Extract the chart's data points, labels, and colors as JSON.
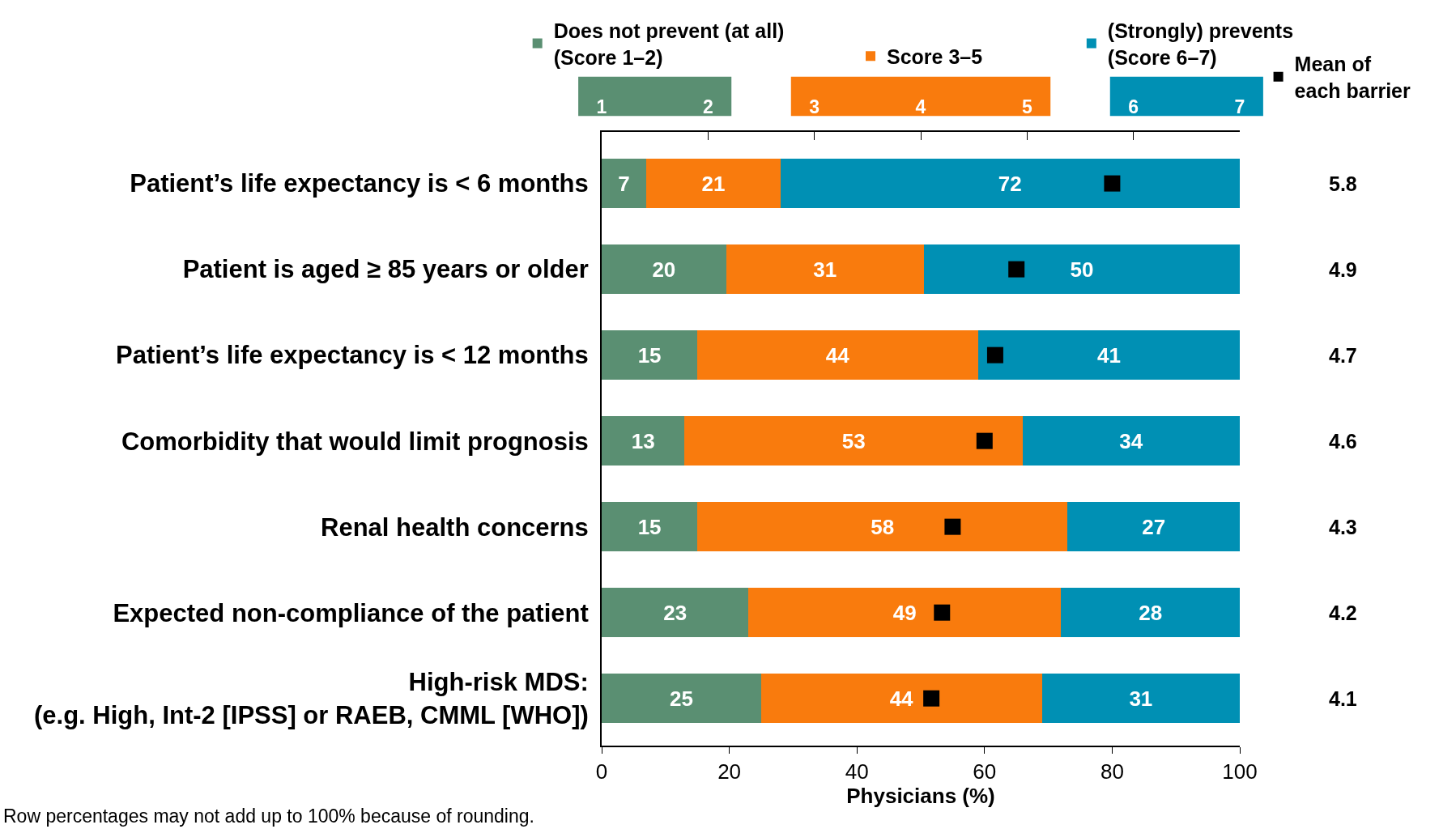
{
  "chart_data": {
    "type": "bar",
    "orientation": "horizontal",
    "stacked": true,
    "categories": [
      "Patient’s life expectancy is < 6 months",
      "Patient is aged ≥ 85 years or older",
      "Patient’s life expectancy is < 12 months",
      "Comorbidity that would limit prognosis",
      "Renal health concerns",
      "Expected non-compliance of the patient",
      "High-risk MDS:\n(e.g. High, Int-2 [IPSS] or RAEB, CMML [WHO])"
    ],
    "series": [
      {
        "name": "Does not prevent (at all)\n(Score 1–2)",
        "color": "#5a8f72",
        "values": [
          7,
          19.5,
          15,
          13,
          15,
          23,
          25
        ],
        "value_labels": [
          "7",
          "20",
          "15",
          "13",
          "15",
          "23",
          "25"
        ]
      },
      {
        "name": "Score 3–5",
        "color": "#f97b0d",
        "values": [
          21,
          31,
          44,
          53,
          58,
          49,
          44
        ],
        "value_labels": [
          "21",
          "31",
          "44",
          "53",
          "58",
          "49",
          "44"
        ]
      },
      {
        "name": "(Strongly) prevents\n(Score 6–7)",
        "color": "#0090b4",
        "values": [
          72,
          49.5,
          41,
          34,
          27,
          28,
          31
        ],
        "value_labels": [
          "72",
          "50",
          "41",
          "34",
          "27",
          "28",
          "31"
        ]
      },
      {
        "name": "Mean of\neach barrier",
        "type": "scatter",
        "axis": "x2",
        "marker": "square",
        "color": "#000000",
        "values": [
          5.8,
          4.9,
          4.7,
          4.6,
          4.3,
          4.2,
          4.1
        ],
        "value_labels": [
          "5.8",
          "4.9",
          "4.7",
          "4.6",
          "4.3",
          "4.2",
          "4.1"
        ]
      }
    ],
    "xlim": [
      0,
      100
    ],
    "xticks": [
      0,
      20,
      40,
      60,
      80,
      100
    ],
    "xlabel": "Physicians (%)",
    "x2lim": [
      1,
      7
    ],
    "x2ticks": [
      1,
      2,
      3,
      4,
      5,
      6,
      7
    ],
    "legend": "top right",
    "annotations": [
      "Row percentages may not add up to 100% because of rounding."
    ]
  }
}
